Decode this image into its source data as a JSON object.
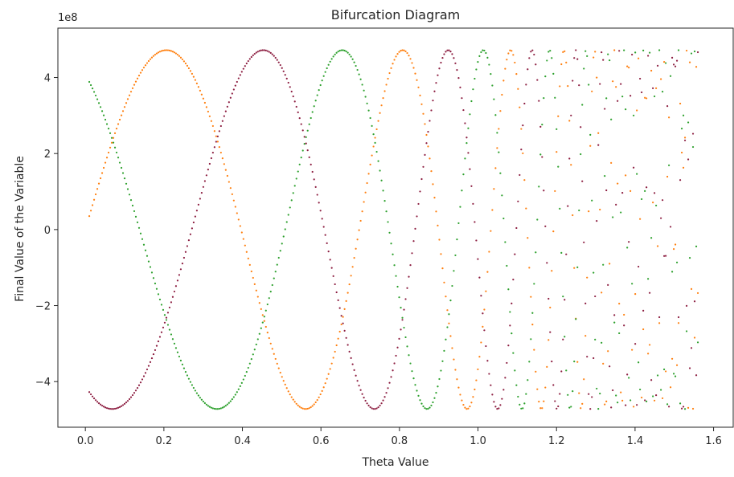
{
  "chart_data": {
    "type": "scatter",
    "title": "Bifurcation Diagram",
    "xlabel": "Theta Value",
    "ylabel": "Final Value of the Variable",
    "y_offset_label": "1e8",
    "xlim": [
      -0.07,
      1.65
    ],
    "ylim": [
      -5.2,
      5.3
    ],
    "x_ticks": [
      0.0,
      0.2,
      0.4,
      0.6,
      0.8,
      1.0,
      1.2,
      1.4,
      1.6
    ],
    "x_tick_labels": [
      "0.0",
      "0.2",
      "0.4",
      "0.6",
      "0.8",
      "1.0",
      "1.2",
      "1.4",
      "1.6"
    ],
    "y_ticks": [
      -4,
      -2,
      0,
      2,
      4
    ],
    "y_tick_labels": [
      "−4",
      "−2",
      "0",
      "2",
      "4"
    ],
    "grid": false,
    "legend": "none",
    "series": [
      {
        "color": "#ff7f0e",
        "theta_range": [
          0.01,
          1.56
        ],
        "n_points": 380,
        "amplitude": 4.72,
        "phase": 0.0
      },
      {
        "color": "#2ca02c",
        "theta_range": [
          0.01,
          1.56
        ],
        "n_points": 380,
        "amplitude": 4.72,
        "phase": 2.1
      },
      {
        "color": "#8c1d40",
        "theta_range": [
          0.01,
          1.56
        ],
        "n_points": 380,
        "amplitude": 4.72,
        "phase": 4.2
      }
    ],
    "frequency_scale": 7.5
  }
}
